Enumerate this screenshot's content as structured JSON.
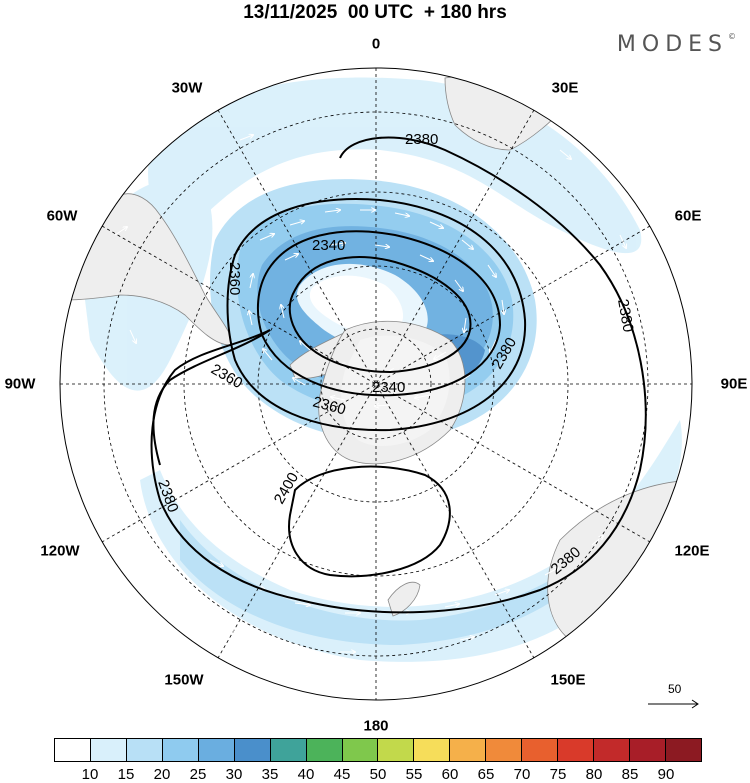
{
  "title": "13/11/2025  00 UTC  + 180 hrs",
  "logo": "MODES",
  "logo_mark": "©",
  "longitude_labels": {
    "lon_0": "0",
    "lon_30e": "30E",
    "lon_60e": "60E",
    "lon_90e": "90E",
    "lon_120e": "120E",
    "lon_150e": "150E",
    "lon_180": "180",
    "lon_150w": "150W",
    "lon_120w": "120W",
    "lon_90w": "90W",
    "lon_60w": "60W",
    "lon_30w": "30W"
  },
  "contour_labels": {
    "c1": "2380",
    "c2": "2340",
    "c3": "2360",
    "c4": "2380",
    "c5": "2380",
    "c6": "2360",
    "c7": "2360",
    "c8": "2340",
    "c9": "2400",
    "c10": "2380",
    "c11": "2380"
  },
  "reference_vector": "50",
  "colorbar": {
    "colors": [
      "#ffffff",
      "#d9f0fb",
      "#b8e0f6",
      "#8fcbef",
      "#6aaee0",
      "#4a8fcb",
      "#3fa39a",
      "#4cb35a",
      "#7fc84c",
      "#c2d94b",
      "#f6dd5a",
      "#f5b04a",
      "#f08a3a",
      "#e8602e",
      "#d93a2a",
      "#c22a2a",
      "#a81e28",
      "#8c1a22"
    ],
    "ticks": [
      "10",
      "15",
      "20",
      "25",
      "30",
      "35",
      "40",
      "45",
      "50",
      "55",
      "60",
      "65",
      "70",
      "75",
      "80",
      "85",
      "90"
    ]
  }
}
